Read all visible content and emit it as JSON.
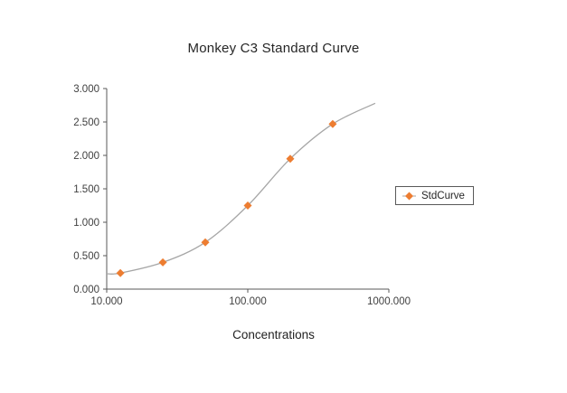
{
  "chart_data": {
    "type": "scatter-line",
    "title": "Monkey C3 Standard Curve",
    "xlabel": "Concentrations",
    "ylabel": "",
    "x_scale": "log",
    "xlim": [
      10,
      1000
    ],
    "ylim": [
      0,
      3
    ],
    "grid": false,
    "legend_position": "right",
    "axis_color": "#595959",
    "tick_label_color": "#404040",
    "x_ticks": [
      {
        "value": 10,
        "label": "10.000"
      },
      {
        "value": 100,
        "label": "100.000"
      },
      {
        "value": 1000,
        "label": "1000.000"
      }
    ],
    "y_ticks": [
      {
        "value": 0,
        "label": "0.000"
      },
      {
        "value": 0.5,
        "label": "0.500"
      },
      {
        "value": 1,
        "label": "1.000"
      },
      {
        "value": 1.5,
        "label": "1.500"
      },
      {
        "value": 2,
        "label": "2.000"
      },
      {
        "value": 2.5,
        "label": "2.500"
      },
      {
        "value": 3,
        "label": "3.000"
      }
    ],
    "series": [
      {
        "name": "StdCurve",
        "marker": "diamond",
        "marker_color": "#ED7D31",
        "line_color": "#A6A6A6",
        "points": [
          {
            "x": 12.5,
            "y": 0.24
          },
          {
            "x": 25,
            "y": 0.4
          },
          {
            "x": 50,
            "y": 0.7
          },
          {
            "x": 100,
            "y": 1.25
          },
          {
            "x": 200,
            "y": 1.95
          },
          {
            "x": 400,
            "y": 2.47
          }
        ],
        "fit_curve": [
          {
            "x": 10,
            "y": 0.23
          },
          {
            "x": 12.5,
            "y": 0.24
          },
          {
            "x": 25,
            "y": 0.4
          },
          {
            "x": 50,
            "y": 0.7
          },
          {
            "x": 100,
            "y": 1.25
          },
          {
            "x": 200,
            "y": 1.95
          },
          {
            "x": 400,
            "y": 2.47
          },
          {
            "x": 800,
            "y": 2.78
          }
        ]
      }
    ]
  }
}
